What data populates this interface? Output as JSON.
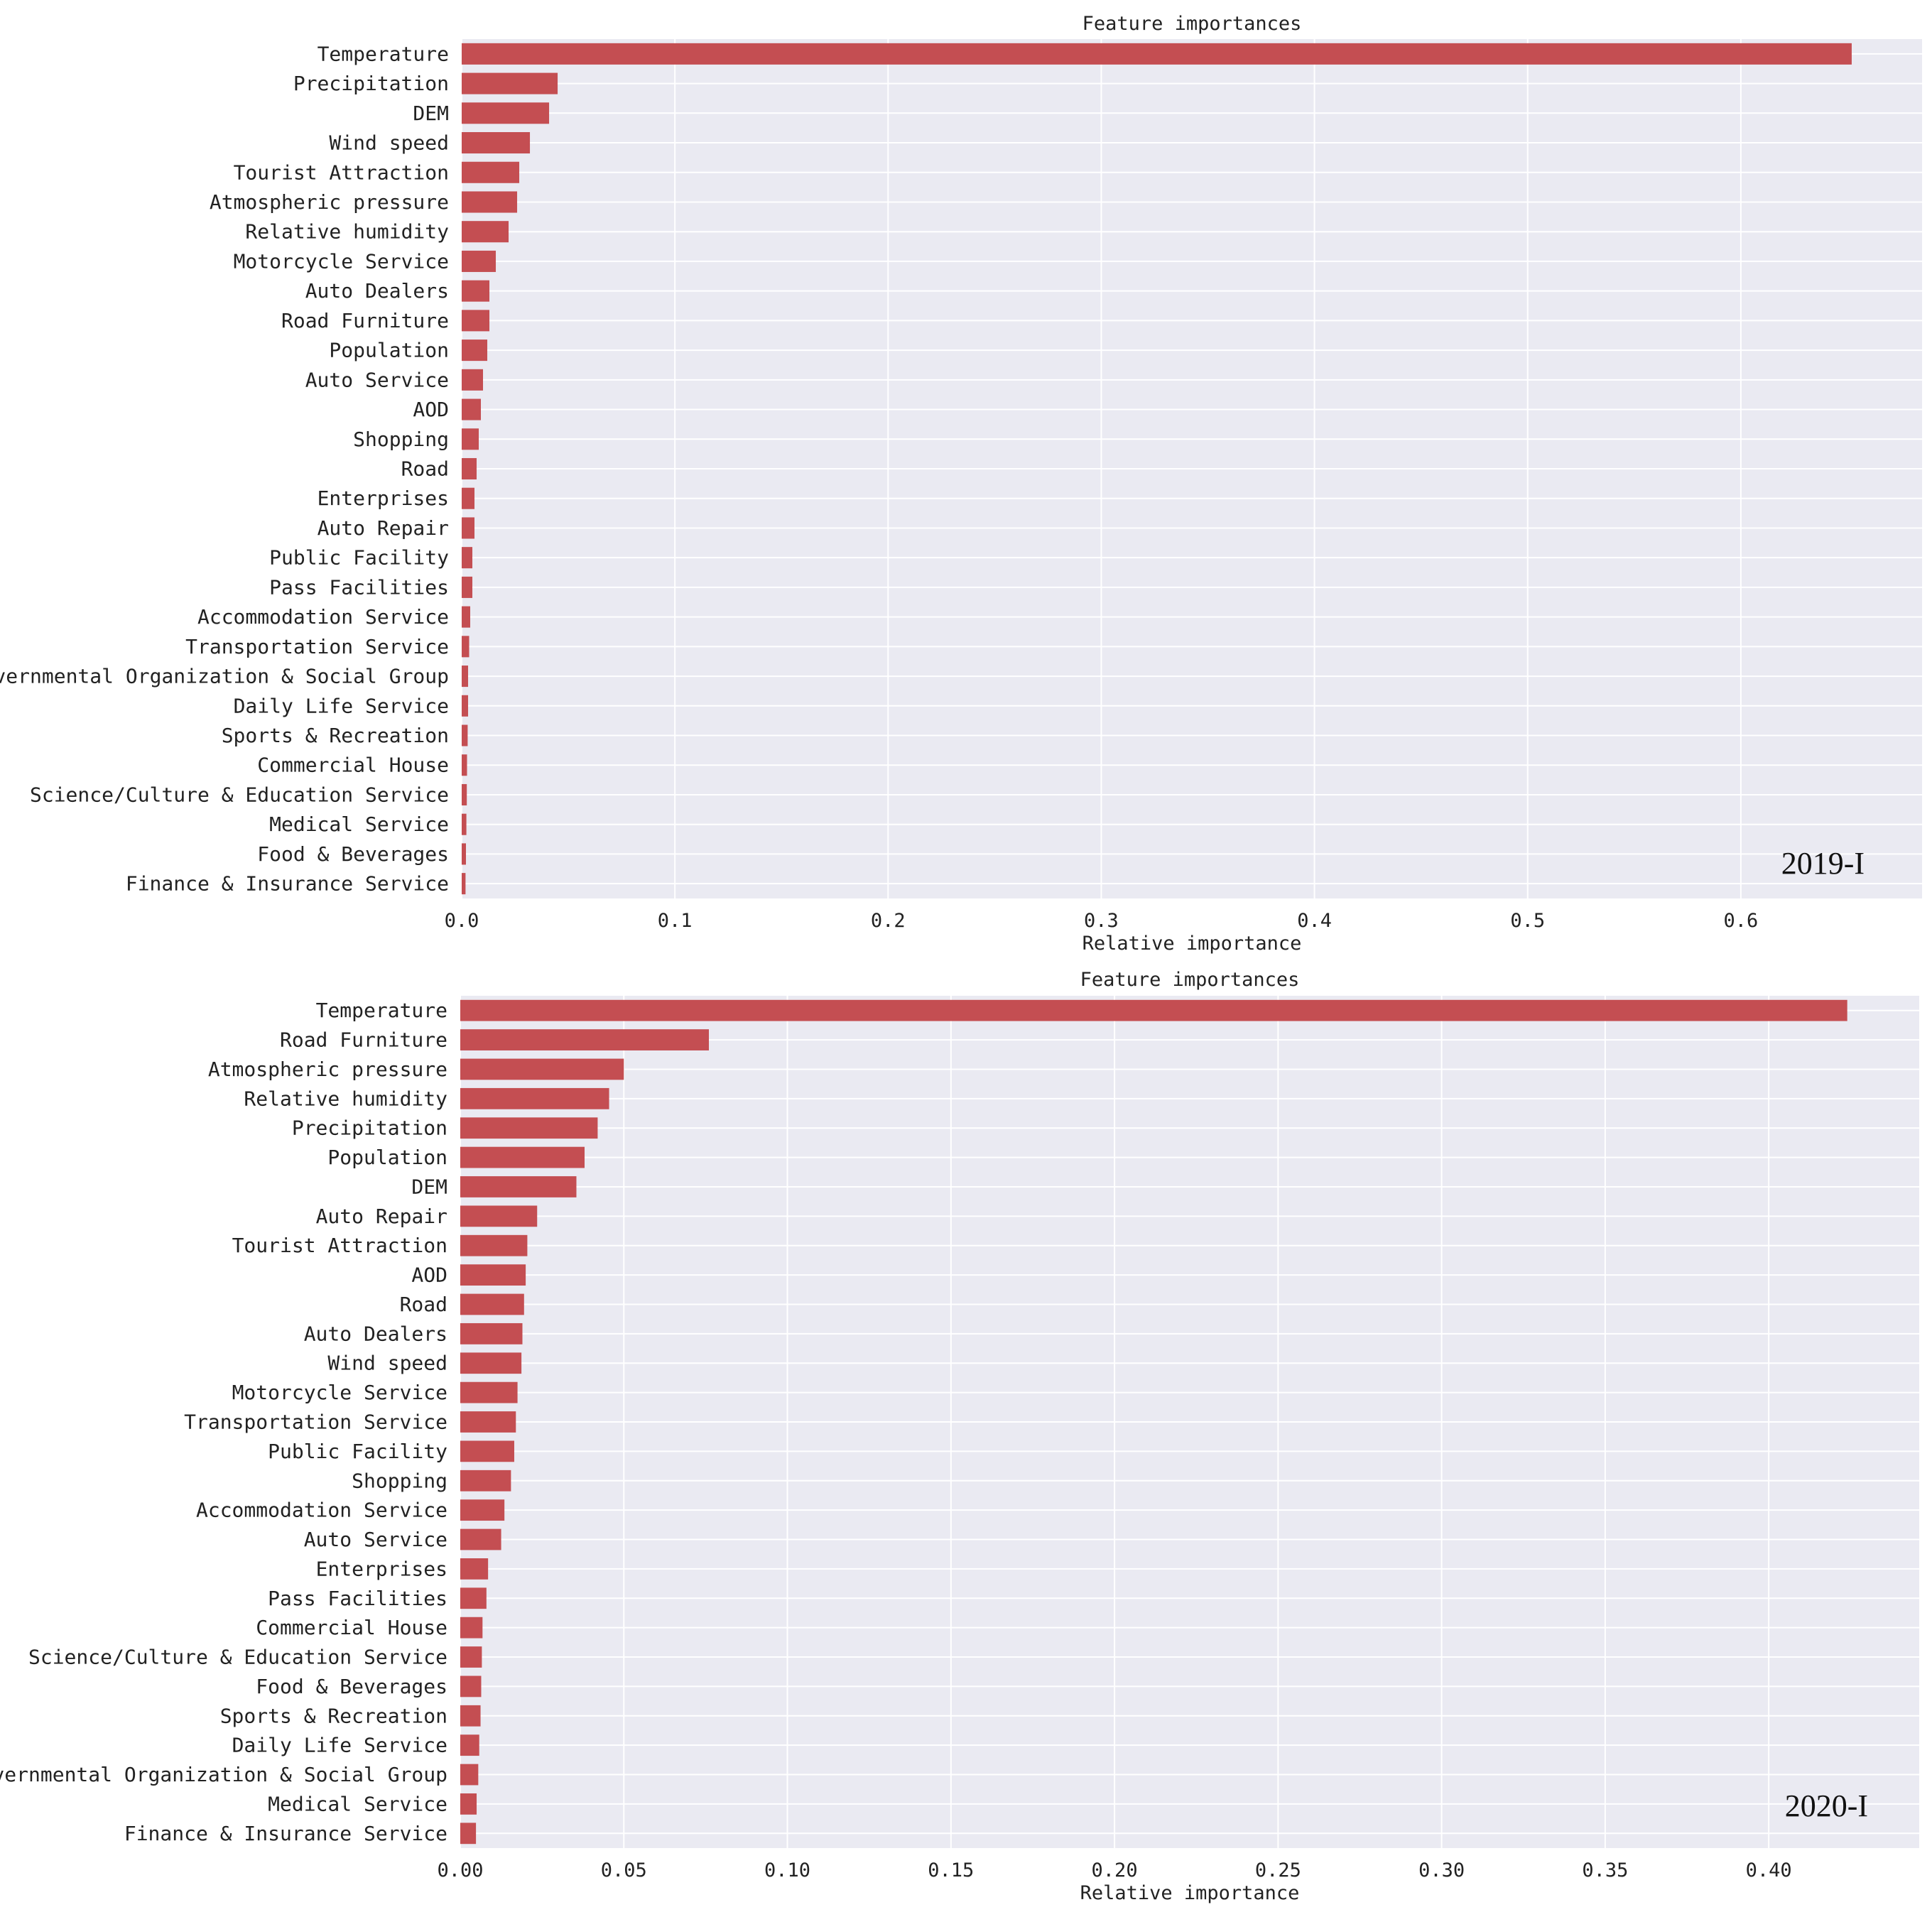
{
  "chart_data": [
    {
      "type": "bar",
      "orientation": "horizontal",
      "title": "Feature importances",
      "xlabel": "Relative importance",
      "ylabel": "",
      "panel_label": "2019-I",
      "xlim": [
        0,
        0.685
      ],
      "xticks": [
        0,
        0.1,
        0.2,
        0.3,
        0.4,
        0.5,
        0.6
      ],
      "xtick_labels": [
        "0.0",
        "0.1",
        "0.2",
        "0.3",
        "0.4",
        "0.5",
        "0.6"
      ],
      "grid": true,
      "bar_color": "#c44e52",
      "background_color": "#eaeaf2",
      "categories": [
        "Temperature",
        "Precipitation",
        "DEM",
        "Wind speed",
        "Tourist Attraction",
        "Atmospheric pressure",
        "Relative humidity",
        "Motorcycle Service",
        "Auto Dealers",
        "Road Furniture",
        "Population",
        "Auto Service",
        "AOD",
        "Shopping",
        "Road",
        "Enterprises",
        "Auto Repair",
        "Public Facility",
        "Pass Facilities",
        "Accommodation Service",
        "Transportation Service",
        "Governmental Organization & Social Group",
        "Daily Life Service",
        "Sports & Recreation",
        "Commercial House",
        "Science/Culture & Education Service",
        "Medical Service",
        "Food & Beverages",
        "Finance & Insurance Service"
      ],
      "values": [
        0.652,
        0.045,
        0.041,
        0.032,
        0.027,
        0.026,
        0.022,
        0.016,
        0.013,
        0.013,
        0.012,
        0.01,
        0.009,
        0.008,
        0.007,
        0.006,
        0.006,
        0.005,
        0.005,
        0.004,
        0.0035,
        0.003,
        0.003,
        0.0028,
        0.0025,
        0.0024,
        0.0022,
        0.002,
        0.0018
      ]
    },
    {
      "type": "bar",
      "orientation": "horizontal",
      "title": "Feature importances",
      "xlabel": "Relative importance",
      "ylabel": "",
      "panel_label": "2020-I",
      "xlim": [
        0,
        0.446
      ],
      "xticks": [
        0,
        0.05,
        0.1,
        0.15,
        0.2,
        0.25,
        0.3,
        0.35,
        0.4
      ],
      "xtick_labels": [
        "0.00",
        "0.05",
        "0.10",
        "0.15",
        "0.20",
        "0.25",
        "0.30",
        "0.35",
        "0.40"
      ],
      "grid": true,
      "bar_color": "#c44e52",
      "background_color": "#eaeaf2",
      "categories": [
        "Temperature",
        "Road Furniture",
        "Atmospheric pressure",
        "Relative humidity",
        "Precipitation",
        "Population",
        "DEM",
        "Auto Repair",
        "Tourist Attraction",
        "AOD",
        "Road",
        "Auto Dealers",
        "Wind speed",
        "Motorcycle Service",
        "Transportation Service",
        "Public Facility",
        "Shopping",
        "Accommodation Service",
        "Auto Service",
        "Enterprises",
        "Pass Facilities",
        "Commercial House",
        "Science/Culture & Education Service",
        "Food & Beverages",
        "Sports & Recreation",
        "Daily Life Service",
        "Governmental Organization & Social Group",
        "Medical Service",
        "Finance & Insurance Service"
      ],
      "values": [
        0.424,
        0.076,
        0.05,
        0.0455,
        0.042,
        0.038,
        0.0355,
        0.0235,
        0.0205,
        0.02,
        0.0195,
        0.019,
        0.0187,
        0.0175,
        0.017,
        0.0165,
        0.0155,
        0.0135,
        0.0125,
        0.0085,
        0.008,
        0.0068,
        0.0066,
        0.0064,
        0.0062,
        0.0058,
        0.0055,
        0.005,
        0.0048
      ]
    }
  ]
}
